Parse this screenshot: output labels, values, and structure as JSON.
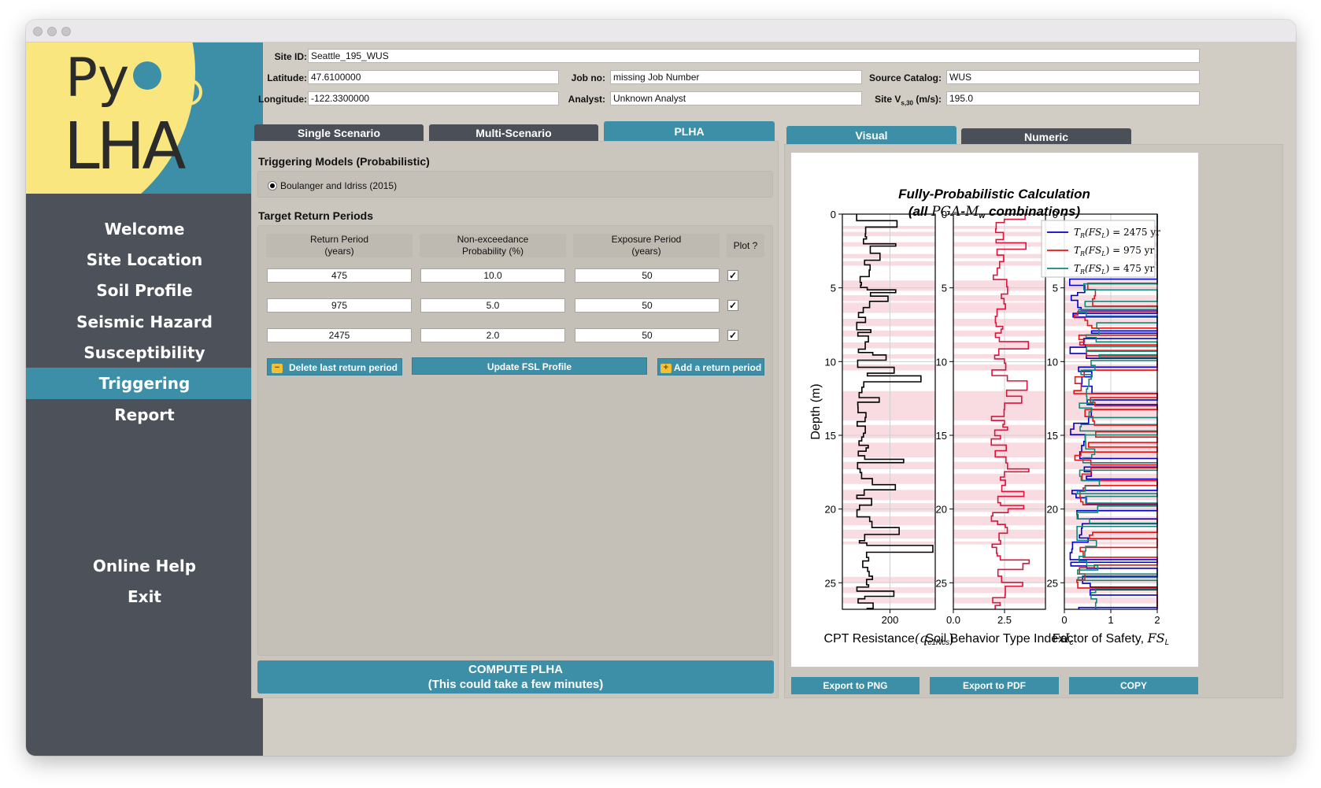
{
  "sidebar": {
    "logo": {
      "py": "Py",
      "lha": "LHA"
    },
    "items": [
      {
        "label": "Welcome"
      },
      {
        "label": "Site Location"
      },
      {
        "label": "Soil Profile"
      },
      {
        "label": "Seismic Hazard"
      },
      {
        "label": "Susceptibility"
      },
      {
        "label": "Triggering",
        "active": true
      },
      {
        "label": "Report"
      }
    ],
    "bottom": [
      {
        "label": "Online Help"
      },
      {
        "label": "Exit"
      }
    ]
  },
  "header": {
    "site_id": {
      "label": "Site ID:",
      "value": "Seattle_195_WUS"
    },
    "latitude": {
      "label": "Latitude:",
      "value": "47.6100000"
    },
    "longitude": {
      "label": "Longitude:",
      "value": "-122.3300000"
    },
    "job_no": {
      "label": "Job no:",
      "value": "missing Job Number"
    },
    "analyst": {
      "label": "Analyst:",
      "value": "Unknown Analyst"
    },
    "source_catalog": {
      "label": "Source Catalog:",
      "value": "WUS"
    },
    "site_vs30": {
      "label": "Site V",
      "sub": "s,30",
      "suffix": " (m/s):",
      "value": "195.0"
    }
  },
  "left_tabs": [
    {
      "label": "Single Scenario"
    },
    {
      "label": "Multi-Scenario"
    },
    {
      "label": "PLHA",
      "active": true
    }
  ],
  "right_tabs": [
    {
      "label": "Visual",
      "active": true
    },
    {
      "label": "Numeric"
    }
  ],
  "triggering": {
    "title": "Triggering Models (Probabilistic)",
    "model": "Boulanger and Idriss (2015)"
  },
  "return_periods": {
    "title": "Target Return Periods",
    "headers": {
      "rp": [
        "Return Period",
        "(years)"
      ],
      "prob": [
        "Non-exceedance",
        "Probability (%)"
      ],
      "exp": [
        "Exposure Period",
        "(years)"
      ],
      "plot": "Plot ?"
    },
    "rows": [
      {
        "rp": "475",
        "prob": "10.0",
        "exp": "50",
        "plot": "✓"
      },
      {
        "rp": "975",
        "prob": "5.0",
        "exp": "50",
        "plot": "✓"
      },
      {
        "rp": "2475",
        "prob": "2.0",
        "exp": "50",
        "plot": "✓"
      }
    ],
    "buttons": {
      "delete": "Delete last return period",
      "update": "Update FSL Profile",
      "add": "Add a return period",
      "delete_icon": "−",
      "add_icon": "+"
    }
  },
  "compute": {
    "line1": "COMPUTE PLHA",
    "line2": "(This could take a few minutes)"
  },
  "export": {
    "png": "Export to PNG",
    "pdf": "Export to PDF",
    "copy": "COPY"
  },
  "chart_data": {
    "type": "line",
    "title": "Fully-Probabilistic Calculation",
    "subtitle_parts": [
      "(all ",
      "PGA",
      "-",
      "M",
      "w",
      " combinations)"
    ],
    "ylabel": "Depth (m)",
    "ylim": [
      0,
      26.8
    ],
    "yticks": [
      0,
      5,
      10,
      15,
      20,
      25
    ],
    "y_inverted": true,
    "panels": [
      {
        "xlabel": "CPT Resistance",
        "xunit": "(q",
        "xunit_sub": "c1Ncs",
        "xunit_end": ")",
        "xlim": [
          0,
          390
        ],
        "xticks": [
          {
            "v": 200,
            "label": "200"
          }
        ],
        "series": [
          {
            "color": "#000000"
          }
        ]
      },
      {
        "xlabel": "Soil Behavior Type Index",
        "xunit": "I",
        "xunit_sub": "c",
        "xunit_end": "",
        "xlim": [
          0,
          4.5
        ],
        "xticks": [
          {
            "v": 0,
            "label": "0.0"
          },
          {
            "v": 2.5,
            "label": "2.5"
          }
        ],
        "series": [
          {
            "color": "#dc143c"
          }
        ]
      },
      {
        "xlabel": "Factor of Safety, ",
        "xunit": "FS",
        "xunit_sub": "L",
        "xunit_end": "",
        "xlim": [
          0,
          2
        ],
        "xticks": [
          {
            "v": 0,
            "label": "0"
          },
          {
            "v": 1,
            "label": "1"
          },
          {
            "v": 2,
            "label": "2"
          }
        ],
        "series": [
          {
            "name_parts": [
              "T",
              "R",
              "(FS",
              "L",
              ") = 2475 yr"
            ],
            "color": "#0000cc"
          },
          {
            "name_parts": [
              "T",
              "R",
              "(FS",
              "L",
              ") = 975 yr"
            ],
            "color": "#ee1111"
          },
          {
            "name_parts": [
              "T",
              "R",
              "(FS",
              "L",
              ") = 475 yr"
            ],
            "color": "#108878"
          }
        ]
      }
    ],
    "liquefiable_bands": [
      [
        0.8,
        1.0
      ],
      [
        1.2,
        1.5
      ],
      [
        1.9,
        2.2
      ],
      [
        2.7,
        3.0
      ],
      [
        3.2,
        3.5
      ],
      [
        4.5,
        5.2
      ],
      [
        5.5,
        5.9
      ],
      [
        6.0,
        6.7
      ],
      [
        7.1,
        7.6
      ],
      [
        7.9,
        8.3
      ],
      [
        8.7,
        9.1
      ],
      [
        9.5,
        9.8
      ],
      [
        10.2,
        10.6
      ],
      [
        12.0,
        14.0
      ],
      [
        14.3,
        15.2
      ],
      [
        15.5,
        16.5
      ],
      [
        16.8,
        17.3
      ],
      [
        17.6,
        18.3
      ],
      [
        18.7,
        19.4
      ],
      [
        19.6,
        20.2
      ],
      [
        20.5,
        21.1
      ],
      [
        21.4,
        22.0
      ],
      [
        22.2,
        22.4
      ],
      [
        24.6,
        25.0
      ],
      [
        25.3,
        25.7
      ],
      [
        26.0,
        26.4
      ]
    ]
  }
}
